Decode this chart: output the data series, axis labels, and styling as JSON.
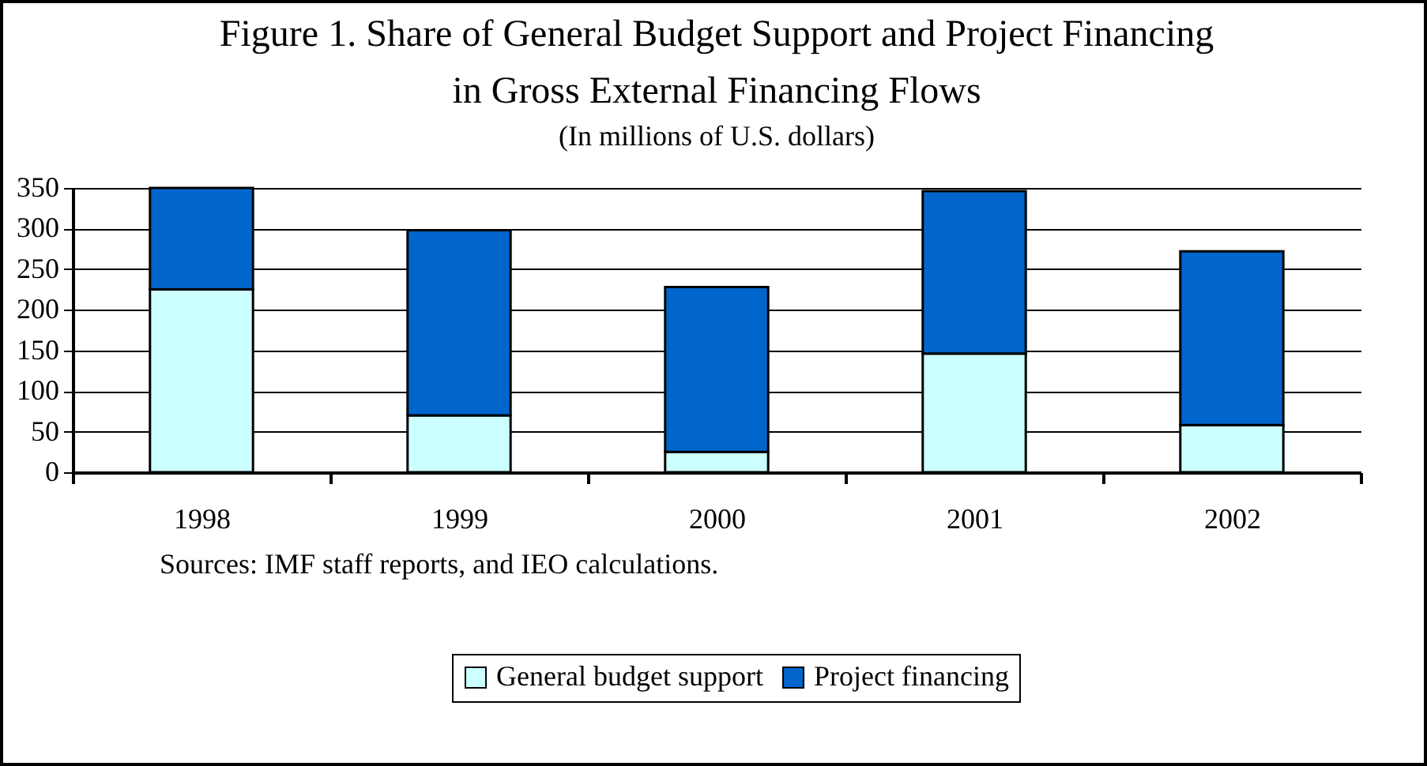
{
  "chart_data": {
    "type": "bar",
    "title": "Figure 1. Share of General Budget Support and Project  Financing in Gross External Financing Flows",
    "subtitle": "(In millions of U.S. dollars)",
    "categories": [
      "1998",
      "1999",
      "2000",
      "2001",
      "2002"
    ],
    "series": [
      {
        "name": "General budget support",
        "color": "#ccffff",
        "values": [
          225,
          70,
          25,
          146,
          58
        ]
      },
      {
        "name": "Project financing",
        "color": "#0066cc",
        "values": [
          125,
          228,
          203,
          200,
          214
        ]
      }
    ],
    "stacked": true,
    "ylim": [
      0,
      350
    ],
    "yticks": [
      0,
      50,
      100,
      150,
      200,
      250,
      300,
      350
    ],
    "grid": "y",
    "legend": "bottom",
    "annotations": [
      "Sources: IMF staff reports, and IEO calculations."
    ]
  }
}
